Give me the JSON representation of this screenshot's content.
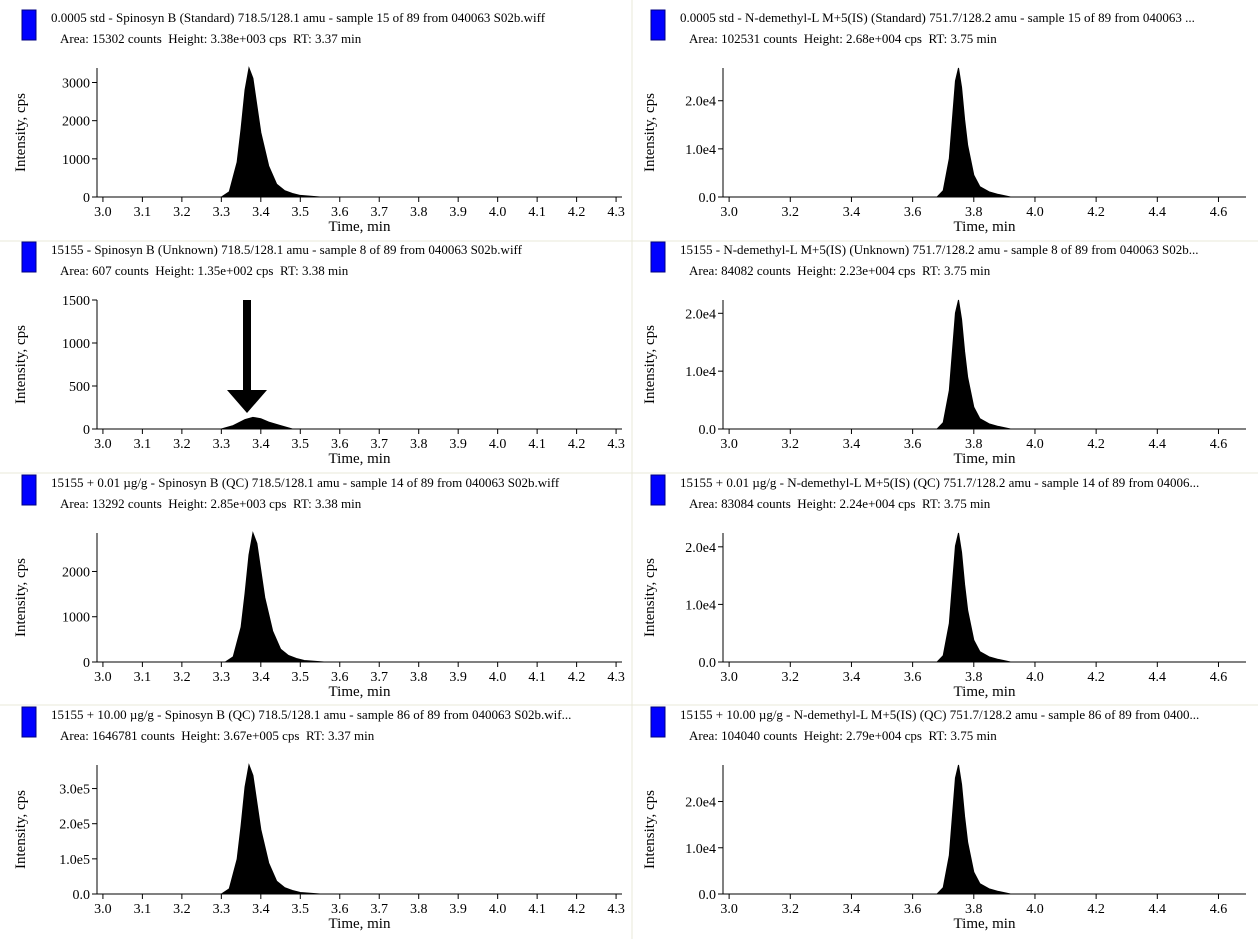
{
  "chart_data": [
    {
      "type": "area",
      "title": "0.0005 std - Spinosyn B (Standard) 718.5/128.1 amu - sample 15 of 89 from 040063 S02b.wiff",
      "subtitle": "Area: 15302 counts  Height: 3.38e+003 cps  RT: 3.37 min",
      "xlabel": "Time, min",
      "ylabel": "Intensity, cps",
      "x": [
        3.3,
        3.32,
        3.34,
        3.35,
        3.36,
        3.37,
        3.38,
        3.39,
        3.4,
        3.42,
        3.44,
        3.46,
        3.48,
        3.5,
        3.55
      ],
      "series": [
        {
          "color": "#000000",
          "values": [
            0,
            135,
            913,
            1791,
            2805,
            3380,
            3110,
            2400,
            1690,
            811,
            338,
            169,
            91,
            41,
            0
          ]
        }
      ],
      "xlim": [
        2.985,
        4.315
      ],
      "ylim": [
        0,
        3380
      ],
      "xticks": [
        {
          "value": 3,
          "label": "3.0"
        },
        3.1,
        3.2,
        3.3,
        3.4,
        3.5,
        3.6,
        3.7,
        3.8,
        3.9,
        {
          "value": 4,
          "label": "4.0"
        },
        4.1,
        4.2,
        4.3
      ],
      "yticks": [
        0,
        1000,
        2000,
        3000
      ]
    },
    {
      "type": "area",
      "title": "0.0005 std - N-demethyl-L M+5(IS) (Standard) 751.7/128.2 amu - sample 15 of 89 from 040063 ...",
      "subtitle": "Area: 102531 counts  Height: 2.68e+004 cps  RT: 3.75 min",
      "xlabel": "Time, min",
      "ylabel": "Intensity, cps",
      "x": [
        3.68,
        3.7,
        3.72,
        3.73,
        3.74,
        3.75,
        3.76,
        3.77,
        3.78,
        3.8,
        3.82,
        3.85,
        3.88,
        3.92
      ],
      "series": [
        {
          "color": "#000000",
          "values": [
            0,
            1340,
            8040,
            16080,
            24120,
            26800,
            22780,
            16080,
            10720,
            4556,
            2144,
            1072,
            536,
            0
          ]
        }
      ],
      "xlim": [
        2.98,
        4.69
      ],
      "ylim": [
        0,
        26800
      ],
      "xticks": [
        {
          "value": 3,
          "label": "3.0"
        },
        3.2,
        3.4,
        3.6,
        3.8,
        {
          "value": 4,
          "label": "4.0"
        },
        4.2,
        4.4,
        4.6
      ],
      "yticks": [
        {
          "value": 0,
          "label": "0.0"
        },
        {
          "value": 10000,
          "label": "1.0e4"
        },
        {
          "value": 20000,
          "label": "2.0e4"
        }
      ]
    },
    {
      "type": "area",
      "title": "15155 - Spinosyn B (Unknown) 718.5/128.1 amu - sample 8 of 89 from 040063 S02b.wiff",
      "subtitle": "Area: 607 counts  Height: 1.35e+002 cps  RT: 3.38 min",
      "xlabel": "Time, min",
      "ylabel": "Intensity, cps",
      "x": [
        3.3,
        3.33,
        3.36,
        3.38,
        3.4,
        3.42,
        3.45,
        3.48
      ],
      "series": [
        {
          "color": "#000000",
          "values": [
            0,
            40,
            110,
            135,
            120,
            80,
            40,
            0
          ]
        }
      ],
      "xlim": [
        2.985,
        4.315
      ],
      "ylim": [
        0,
        1500
      ],
      "xticks": [
        {
          "value": 3,
          "label": "3.0"
        },
        3.1,
        3.2,
        3.3,
        3.4,
        3.5,
        3.6,
        3.7,
        3.8,
        3.9,
        {
          "value": 4,
          "label": "4.0"
        },
        4.1,
        4.2,
        4.3
      ],
      "yticks": [
        0,
        500,
        1000,
        1500
      ]
    },
    {
      "type": "area",
      "title": "15155 - N-demethyl-L M+5(IS) (Unknown) 751.7/128.2 amu - sample 8 of 89 from 040063 S02b...",
      "subtitle": "Area: 84082 counts  Height: 2.23e+004 cps  RT: 3.75 min",
      "xlabel": "Time, min",
      "ylabel": "Intensity, cps",
      "x": [
        3.68,
        3.7,
        3.72,
        3.73,
        3.74,
        3.75,
        3.76,
        3.77,
        3.78,
        3.8,
        3.82,
        3.85,
        3.88,
        3.92
      ],
      "series": [
        {
          "color": "#000000",
          "values": [
            0,
            1115,
            6690,
            13380,
            20070,
            22300,
            18955,
            13380,
            8920,
            3791,
            1784,
            892,
            446,
            0
          ]
        }
      ],
      "xlim": [
        2.98,
        4.69
      ],
      "ylim": [
        0,
        22300
      ],
      "xticks": [
        {
          "value": 3,
          "label": "3.0"
        },
        3.2,
        3.4,
        3.6,
        3.8,
        {
          "value": 4,
          "label": "4.0"
        },
        4.2,
        4.4,
        4.6
      ],
      "yticks": [
        {
          "value": 0,
          "label": "0.0"
        },
        {
          "value": 10000,
          "label": "1.0e4"
        },
        {
          "value": 20000,
          "label": "2.0e4"
        }
      ]
    },
    {
      "type": "area",
      "title": "15155 + 0.01 µg/g - Spinosyn B (QC) 718.5/128.1 amu - sample 14 of 89 from 040063 S02b.wiff",
      "subtitle": "Area: 13292 counts  Height: 2.85e+003 cps  RT: 3.38 min",
      "xlabel": "Time, min",
      "ylabel": "Intensity, cps",
      "x": [
        3.31,
        3.33,
        3.35,
        3.36,
        3.37,
        3.38,
        3.39,
        3.4,
        3.41,
        3.43,
        3.45,
        3.47,
        3.49,
        3.51,
        3.56
      ],
      "series": [
        {
          "color": "#000000",
          "values": [
            0,
            114,
            770,
            1511,
            2366,
            2850,
            2622,
            2024,
            1425,
            684,
            285,
            143,
            77,
            34,
            0
          ]
        }
      ],
      "xlim": [
        2.985,
        4.315
      ],
      "ylim": [
        0,
        2850
      ],
      "xticks": [
        {
          "value": 3,
          "label": "3.0"
        },
        3.1,
        3.2,
        3.3,
        3.4,
        3.5,
        3.6,
        3.7,
        3.8,
        3.9,
        {
          "value": 4,
          "label": "4.0"
        },
        4.1,
        4.2,
        4.3
      ],
      "yticks": [
        0,
        1000,
        2000
      ]
    },
    {
      "type": "area",
      "title": "15155 + 0.01 µg/g - N-demethyl-L M+5(IS) (QC) 751.7/128.2 amu - sample 14 of 89 from 04006...",
      "subtitle": "Area: 83084 counts  Height: 2.24e+004 cps  RT: 3.75 min",
      "xlabel": "Time, min",
      "ylabel": "Intensity, cps",
      "x": [
        3.68,
        3.7,
        3.72,
        3.73,
        3.74,
        3.75,
        3.76,
        3.77,
        3.78,
        3.8,
        3.82,
        3.85,
        3.88,
        3.92
      ],
      "series": [
        {
          "color": "#000000",
          "values": [
            0,
            1120,
            6720,
            13440,
            20160,
            22400,
            19040,
            13440,
            8960,
            3808,
            1792,
            896,
            448,
            0
          ]
        }
      ],
      "xlim": [
        2.98,
        4.69
      ],
      "ylim": [
        0,
        22400
      ],
      "xticks": [
        {
          "value": 3,
          "label": "3.0"
        },
        3.2,
        3.4,
        3.6,
        3.8,
        {
          "value": 4,
          "label": "4.0"
        },
        4.2,
        4.4,
        4.6
      ],
      "yticks": [
        {
          "value": 0,
          "label": "0.0"
        },
        {
          "value": 10000,
          "label": "1.0e4"
        },
        {
          "value": 20000,
          "label": "2.0e4"
        }
      ]
    },
    {
      "type": "area",
      "title": "15155 + 10.00 µg/g - Spinosyn B (QC) 718.5/128.1 amu - sample 86 of 89 from 040063 S02b.wif...",
      "subtitle": "Area: 1646781 counts  Height: 3.67e+005 cps  RT: 3.37 min",
      "xlabel": "Time, min",
      "ylabel": "Intensity, cps",
      "x": [
        3.3,
        3.32,
        3.34,
        3.35,
        3.36,
        3.37,
        3.38,
        3.39,
        3.4,
        3.42,
        3.44,
        3.46,
        3.48,
        3.5,
        3.55
      ],
      "series": [
        {
          "color": "#000000",
          "values": [
            0,
            14680,
            99090,
            194510,
            304610,
            367000,
            337640,
            260570,
            183500,
            88080,
            36700,
            18350,
            9909,
            4404,
            0
          ]
        }
      ],
      "xlim": [
        2.985,
        4.315
      ],
      "ylim": [
        0,
        367000
      ],
      "xticks": [
        {
          "value": 3,
          "label": "3.0"
        },
        3.1,
        3.2,
        3.3,
        3.4,
        3.5,
        3.6,
        3.7,
        3.8,
        3.9,
        {
          "value": 4,
          "label": "4.0"
        },
        4.1,
        4.2,
        4.3
      ],
      "yticks": [
        {
          "value": 0,
          "label": "0.0"
        },
        {
          "value": 100000,
          "label": "1.0e5"
        },
        {
          "value": 200000,
          "label": "2.0e5"
        },
        {
          "value": 300000,
          "label": "3.0e5"
        }
      ]
    },
    {
      "type": "area",
      "title": "15155 + 10.00 µg/g - N-demethyl-L M+5(IS) (QC) 751.7/128.2 amu - sample 86 of 89 from 0400...",
      "subtitle": "Area: 104040 counts  Height: 2.79e+004 cps  RT: 3.75 min",
      "xlabel": "Time, min",
      "ylabel": "Intensity, cps",
      "x": [
        3.68,
        3.7,
        3.72,
        3.73,
        3.74,
        3.75,
        3.76,
        3.77,
        3.78,
        3.8,
        3.82,
        3.85,
        3.88,
        3.92
      ],
      "series": [
        {
          "color": "#000000",
          "values": [
            0,
            1395,
            8370,
            16740,
            25110,
            27900,
            23715,
            16740,
            11160,
            4743,
            2232,
            1116,
            558,
            0
          ]
        }
      ],
      "xlim": [
        2.98,
        4.69
      ],
      "ylim": [
        0,
        27900
      ],
      "xticks": [
        {
          "value": 3,
          "label": "3.0"
        },
        3.2,
        3.4,
        3.6,
        3.8,
        {
          "value": 4,
          "label": "4.0"
        },
        4.2,
        4.4,
        4.6
      ],
      "yticks": [
        {
          "value": 0,
          "label": "0.0"
        },
        {
          "value": 10000,
          "label": "1.0e4"
        },
        {
          "value": 20000,
          "label": "2.0e4"
        }
      ]
    }
  ]
}
